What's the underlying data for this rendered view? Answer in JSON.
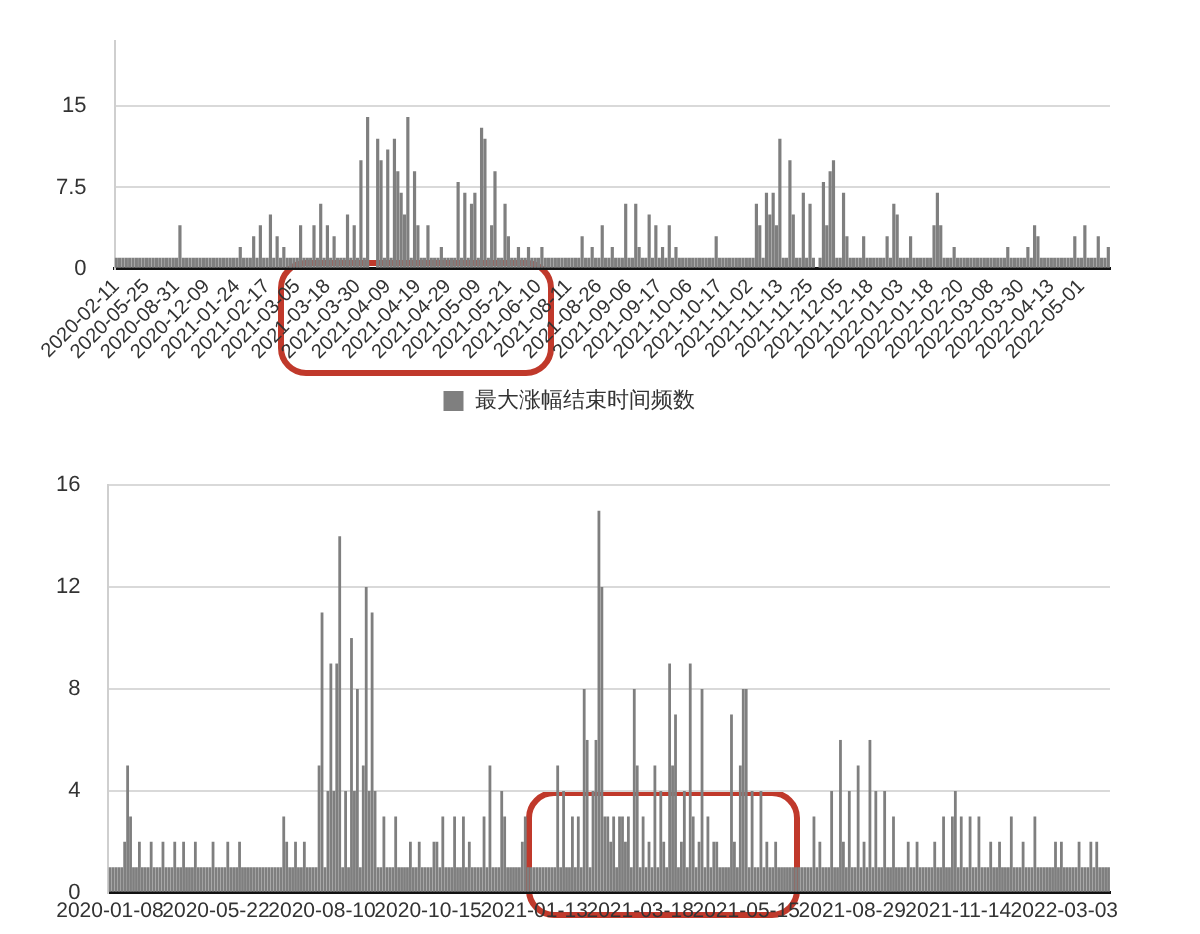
{
  "chart_data": [
    {
      "type": "bar",
      "legend": "bottom",
      "grid": "y",
      "ylim": [
        0,
        21
      ],
      "yticks": [
        0,
        7.5,
        15
      ],
      "categories": [
        "2020-02-11",
        null,
        null,
        null,
        null,
        null,
        null,
        null,
        null,
        "2020-05-25",
        null,
        null,
        null,
        null,
        null,
        null,
        null,
        null,
        "2020-08-31",
        null,
        null,
        null,
        null,
        null,
        null,
        null,
        null,
        "2020-12-09",
        null,
        null,
        null,
        null,
        null,
        null,
        null,
        null,
        "2021-01-24",
        null,
        null,
        null,
        null,
        null,
        null,
        null,
        null,
        "2021-02-17",
        null,
        null,
        null,
        null,
        null,
        null,
        null,
        null,
        "2021-03-05",
        null,
        null,
        null,
        null,
        null,
        null,
        null,
        null,
        "2021-03-18",
        null,
        null,
        null,
        null,
        null,
        null,
        null,
        null,
        "2021-03-30",
        null,
        null,
        null,
        null,
        null,
        null,
        null,
        null,
        "2021-04-09",
        null,
        null,
        null,
        null,
        null,
        null,
        null,
        null,
        "2021-04-19",
        null,
        null,
        null,
        null,
        null,
        null,
        null,
        null,
        "2021-04-29",
        null,
        null,
        null,
        null,
        null,
        null,
        null,
        null,
        "2021-05-09",
        null,
        null,
        null,
        null,
        null,
        null,
        null,
        null,
        "2021-05-21",
        null,
        null,
        null,
        null,
        null,
        null,
        null,
        null,
        "2021-06-10",
        null,
        null,
        null,
        null,
        null,
        null,
        null,
        null,
        "2021-08-11",
        null,
        null,
        null,
        null,
        null,
        null,
        null,
        null,
        "2021-08-26",
        null,
        null,
        null,
        null,
        null,
        null,
        null,
        null,
        "2021-09-06",
        null,
        null,
        null,
        null,
        null,
        null,
        null,
        null,
        "2021-09-17",
        null,
        null,
        null,
        null,
        null,
        null,
        null,
        null,
        "2021-10-06",
        null,
        null,
        null,
        null,
        null,
        null,
        null,
        null,
        "2021-10-17",
        null,
        null,
        null,
        null,
        null,
        null,
        null,
        null,
        "2021-11-02",
        null,
        null,
        null,
        null,
        null,
        null,
        null,
        null,
        "2021-11-13",
        null,
        null,
        null,
        null,
        null,
        null,
        null,
        null,
        "2021-11-25",
        null,
        null,
        null,
        null,
        null,
        null,
        null,
        null,
        "2021-12-05",
        null,
        null,
        null,
        null,
        null,
        null,
        null,
        null,
        "2021-12-18",
        null,
        null,
        null,
        null,
        null,
        null,
        null,
        null,
        "2022-01-03",
        null,
        null,
        null,
        null,
        null,
        null,
        null,
        null,
        "2022-01-18",
        null,
        null,
        null,
        null,
        null,
        null,
        null,
        null,
        "2022-02-20",
        null,
        null,
        null,
        null,
        null,
        null,
        null,
        null,
        "2022-03-08",
        null,
        null,
        null,
        null,
        null,
        null,
        null,
        null,
        "2022-03-30",
        null,
        null,
        null,
        null,
        null,
        null,
        null,
        null,
        "2022-04-13",
        null,
        null,
        null,
        null,
        null,
        null,
        null,
        null,
        "2022-05-01",
        null,
        null,
        null,
        null,
        null,
        null,
        null,
        null
      ],
      "series": [
        {
          "name": "最大涨幅结束时间频数",
          "color": "#7f7f7f",
          "values": [
            1,
            1,
            1,
            1,
            1,
            1,
            1,
            1,
            1,
            1,
            1,
            1,
            1,
            1,
            1,
            1,
            1,
            1,
            1,
            4,
            1,
            1,
            1,
            1,
            1,
            1,
            1,
            1,
            1,
            1,
            1,
            1,
            1,
            1,
            1,
            1,
            1,
            2,
            1,
            1,
            1,
            3,
            1,
            4,
            1,
            1,
            5,
            1,
            3,
            1,
            2,
            1,
            1,
            1,
            1,
            4,
            1,
            1,
            1,
            4,
            1,
            6,
            1,
            4,
            1,
            3,
            1,
            1,
            1,
            5,
            1,
            4,
            1,
            10,
            1,
            14,
            null,
            null,
            12,
            10,
            1,
            11,
            1,
            12,
            9,
            7,
            5,
            14,
            1,
            9,
            4,
            1,
            1,
            4,
            1,
            1,
            1,
            2,
            1,
            1,
            1,
            1,
            8,
            1,
            7,
            1,
            6,
            7,
            1,
            13,
            12,
            1,
            4,
            9,
            1,
            1,
            6,
            3,
            1,
            1,
            2,
            1,
            1,
            2,
            1,
            1,
            1,
            2,
            1,
            1,
            1,
            1,
            1,
            1,
            1,
            1,
            1,
            1,
            1,
            3,
            1,
            1,
            2,
            1,
            1,
            4,
            1,
            1,
            2,
            1,
            1,
            1,
            6,
            1,
            1,
            6,
            2,
            1,
            1,
            5,
            1,
            4,
            1,
            2,
            1,
            4,
            1,
            2,
            1,
            1,
            1,
            1,
            1,
            1,
            1,
            1,
            1,
            1,
            1,
            3,
            1,
            1,
            1,
            1,
            1,
            1,
            1,
            1,
            1,
            1,
            1,
            6,
            4,
            1,
            7,
            5,
            7,
            4,
            12,
            1,
            1,
            10,
            5,
            1,
            1,
            7,
            1,
            6,
            1,
            null,
            1,
            8,
            4,
            9,
            10,
            1,
            1,
            7,
            3,
            1,
            1,
            1,
            1,
            3,
            1,
            1,
            1,
            1,
            1,
            1,
            3,
            1,
            6,
            5,
            1,
            1,
            1,
            3,
            1,
            1,
            1,
            1,
            1,
            1,
            4,
            7,
            4,
            1,
            1,
            1,
            2,
            1,
            1,
            1,
            1,
            1,
            1,
            1,
            1,
            1,
            1,
            1,
            1,
            1,
            1,
            1,
            2,
            1,
            1,
            1,
            1,
            1,
            2,
            1,
            4,
            3,
            1,
            1,
            1,
            1,
            1,
            1,
            1,
            1,
            1,
            1,
            3,
            1,
            1,
            4,
            1,
            1,
            1,
            3,
            1,
            1,
            2
          ]
        }
      ]
    },
    {
      "type": "bar",
      "grid": "y",
      "ylim": [
        0,
        16
      ],
      "yticks": [
        0,
        4,
        8,
        12,
        16
      ],
      "categories": [
        "2020-01-08",
        null,
        null,
        null,
        null,
        null,
        null,
        null,
        null,
        null,
        null,
        null,
        null,
        null,
        null,
        null,
        null,
        null,
        null,
        null,
        null,
        null,
        null,
        null,
        null,
        null,
        null,
        null,
        null,
        null,
        null,
        null,
        null,
        null,
        null,
        null,
        "2020-05-22",
        null,
        null,
        null,
        null,
        null,
        null,
        null,
        null,
        null,
        null,
        null,
        null,
        null,
        null,
        null,
        null,
        null,
        null,
        null,
        null,
        null,
        null,
        null,
        null,
        null,
        null,
        null,
        null,
        null,
        null,
        null,
        null,
        null,
        null,
        null,
        "2020-08-10",
        null,
        null,
        null,
        null,
        null,
        null,
        null,
        null,
        null,
        null,
        null,
        null,
        null,
        null,
        null,
        null,
        null,
        null,
        null,
        null,
        null,
        null,
        null,
        null,
        null,
        null,
        null,
        null,
        null,
        null,
        null,
        null,
        null,
        null,
        null,
        "2020-10-15",
        null,
        null,
        null,
        null,
        null,
        null,
        null,
        null,
        null,
        null,
        null,
        null,
        null,
        null,
        null,
        null,
        null,
        null,
        null,
        null,
        null,
        null,
        null,
        null,
        null,
        null,
        null,
        null,
        null,
        null,
        null,
        null,
        null,
        null,
        null,
        "2021-01-13",
        null,
        null,
        null,
        null,
        null,
        null,
        null,
        null,
        null,
        null,
        null,
        null,
        null,
        null,
        null,
        null,
        null,
        null,
        null,
        null,
        null,
        null,
        null,
        null,
        null,
        null,
        null,
        null,
        null,
        null,
        null,
        null,
        null,
        null,
        null,
        "2021-03-18",
        null,
        null,
        null,
        null,
        null,
        null,
        null,
        null,
        null,
        null,
        null,
        null,
        null,
        null,
        null,
        null,
        null,
        null,
        null,
        null,
        null,
        null,
        null,
        null,
        null,
        null,
        null,
        null,
        null,
        null,
        null,
        null,
        null,
        null,
        null,
        "2021-05-15",
        null,
        null,
        null,
        null,
        null,
        null,
        null,
        null,
        null,
        null,
        null,
        null,
        null,
        null,
        null,
        null,
        null,
        null,
        null,
        null,
        null,
        null,
        null,
        null,
        null,
        null,
        null,
        null,
        null,
        null,
        null,
        null,
        null,
        null,
        null,
        "2021-08-29",
        null,
        null,
        null,
        null,
        null,
        null,
        null,
        null,
        null,
        null,
        null,
        null,
        null,
        null,
        null,
        null,
        null,
        null,
        null,
        null,
        null,
        null,
        null,
        null,
        null,
        null,
        null,
        null,
        null,
        null,
        null,
        null,
        null,
        null,
        null,
        "2021-11-14",
        null,
        null,
        null,
        null,
        null,
        null,
        null,
        null,
        null,
        null,
        null,
        null,
        null,
        null,
        null,
        null,
        null,
        null,
        null,
        null,
        null,
        null,
        null,
        null,
        null,
        null,
        null,
        null,
        null,
        null,
        null,
        null,
        null,
        null,
        null,
        "2022-03-03",
        null,
        null,
        null,
        null,
        null,
        null,
        null,
        null,
        null,
        null,
        null,
        null,
        null,
        null,
        null
      ],
      "series": [
        {
          "color": "#7f7f7f",
          "values": [
            1,
            1,
            1,
            1,
            1,
            2,
            5,
            3,
            1,
            1,
            2,
            1,
            1,
            1,
            2,
            1,
            1,
            1,
            2,
            1,
            1,
            1,
            2,
            1,
            1,
            2,
            1,
            1,
            1,
            2,
            1,
            1,
            1,
            1,
            1,
            2,
            1,
            1,
            1,
            1,
            2,
            1,
            1,
            1,
            2,
            1,
            1,
            1,
            1,
            1,
            1,
            1,
            1,
            1,
            1,
            1,
            1,
            1,
            1,
            3,
            2,
            1,
            1,
            2,
            1,
            1,
            2,
            1,
            1,
            1,
            1,
            5,
            11,
            1,
            4,
            9,
            4,
            9,
            14,
            1,
            4,
            1,
            10,
            4,
            8,
            1,
            5,
            12,
            4,
            11,
            4,
            1,
            1,
            3,
            1,
            1,
            1,
            3,
            1,
            1,
            1,
            1,
            2,
            1,
            1,
            2,
            1,
            1,
            1,
            1,
            2,
            2,
            1,
            3,
            1,
            1,
            1,
            3,
            1,
            1,
            3,
            1,
            2,
            1,
            1,
            1,
            1,
            3,
            1,
            5,
            1,
            1,
            1,
            4,
            3,
            1,
            1,
            1,
            1,
            1,
            2,
            3,
            1,
            1,
            1,
            1,
            1,
            1,
            1,
            1,
            1,
            1,
            5,
            1,
            4,
            1,
            1,
            3,
            1,
            3,
            1,
            8,
            6,
            1,
            4,
            6,
            15,
            12,
            3,
            3,
            2,
            3,
            1,
            3,
            3,
            2,
            3,
            1,
            8,
            5,
            1,
            3,
            1,
            2,
            1,
            5,
            1,
            4,
            2,
            1,
            9,
            5,
            7,
            1,
            2,
            4,
            1,
            9,
            3,
            1,
            2,
            8,
            1,
            3,
            1,
            2,
            2,
            1,
            1,
            1,
            1,
            7,
            2,
            1,
            5,
            8,
            8,
            1,
            4,
            1,
            1,
            4,
            1,
            2,
            1,
            1,
            2,
            1,
            1,
            1,
            1,
            1,
            1,
            1,
            1,
            1,
            1,
            1,
            1,
            3,
            1,
            2,
            1,
            1,
            1,
            4,
            1,
            1,
            6,
            2,
            1,
            4,
            1,
            1,
            5,
            1,
            2,
            1,
            6,
            1,
            4,
            1,
            1,
            4,
            1,
            1,
            3,
            1,
            1,
            1,
            1,
            2,
            1,
            1,
            2,
            1,
            1,
            1,
            1,
            1,
            2,
            1,
            1,
            3,
            1,
            1,
            3,
            4,
            1,
            3,
            1,
            1,
            3,
            1,
            1,
            3,
            1,
            1,
            1,
            2,
            1,
            1,
            2,
            1,
            1,
            1,
            3,
            1,
            1,
            1,
            2,
            1,
            1,
            1,
            3,
            1,
            1,
            1,
            1,
            1,
            1,
            2,
            1,
            2,
            1,
            1,
            1,
            1,
            1,
            2,
            1,
            1,
            1,
            2,
            1,
            2,
            1,
            1,
            1,
            1
          ]
        }
      ]
    }
  ]
}
